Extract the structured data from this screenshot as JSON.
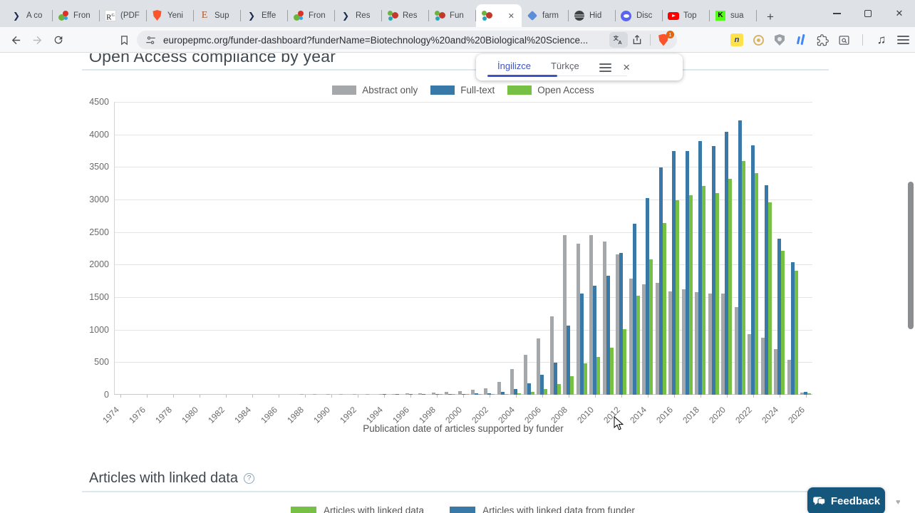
{
  "browser": {
    "tabs": [
      {
        "label": "A co",
        "icon": "chevron-dark-icon"
      },
      {
        "label": "Fron",
        "icon": "frontiers-icon"
      },
      {
        "label": "(PDF",
        "icon": "researchgate-icon"
      },
      {
        "label": "Yeni",
        "icon": "brave-icon"
      },
      {
        "label": "Sup",
        "icon": "e-serif-icon"
      },
      {
        "label": "Effe",
        "icon": "chevron-dark-icon"
      },
      {
        "label": "Fron",
        "icon": "frontiers-icon"
      },
      {
        "label": "Res",
        "icon": "chevron-dark-icon"
      },
      {
        "label": "Res",
        "icon": "europepmc-icon"
      },
      {
        "label": "Fun",
        "icon": "europepmc-icon"
      },
      {
        "label": "",
        "icon": "europepmc-icon",
        "active": true
      },
      {
        "label": "farm",
        "icon": "blue-gem-icon"
      },
      {
        "label": "Hid",
        "icon": "globe-icon"
      },
      {
        "label": "Disc",
        "icon": "discord-icon"
      },
      {
        "label": "Top",
        "icon": "youtube-icon"
      },
      {
        "label": "sua",
        "icon": "kick-icon"
      }
    ],
    "new_tab_label": "+",
    "url": "europepmc.org/funder-dashboard?funderName=Biotechnology%20and%20Biological%20Science...",
    "shield_badge": "1",
    "translate_popup": {
      "source_lang": "İngilizce",
      "target_lang": "Türkçe"
    }
  },
  "page": {
    "title": "Open Access compliance by year",
    "section_heading": "Articles with linked data",
    "info_glyph": "?",
    "feedback_label": "Feedback",
    "bottom_legend": [
      {
        "label": "Articles with linked data",
        "color": "#76c045"
      },
      {
        "label": "Articles with linked data from funder",
        "color": "#3879a8"
      }
    ]
  },
  "chart_data": {
    "type": "bar",
    "title": "Open Access compliance by year",
    "xlabel": "Publication date of articles supported by funder",
    "ylabel": "",
    "ylim": [
      0,
      4500
    ],
    "ytick_step": 500,
    "x_label_every": 2,
    "grid": true,
    "legend_position": "top",
    "categories": [
      1974,
      1975,
      1976,
      1977,
      1978,
      1979,
      1980,
      1981,
      1982,
      1983,
      1984,
      1985,
      1986,
      1987,
      1988,
      1989,
      1990,
      1991,
      1992,
      1993,
      1994,
      1995,
      1996,
      1997,
      1998,
      1999,
      2000,
      2001,
      2002,
      2003,
      2004,
      2005,
      2006,
      2007,
      2008,
      2009,
      2010,
      2011,
      2012,
      2013,
      2014,
      2015,
      2016,
      2017,
      2018,
      2019,
      2020,
      2021,
      2022,
      2023,
      2024,
      2025,
      2026
    ],
    "series": [
      {
        "name": "Abstract only",
        "color": "#a5a8ab",
        "values": [
          0,
          0,
          0,
          0,
          0,
          0,
          0,
          0,
          0,
          0,
          0,
          0,
          0,
          0,
          3,
          4,
          5,
          6,
          8,
          10,
          12,
          15,
          20,
          25,
          32,
          45,
          55,
          75,
          100,
          200,
          390,
          615,
          865,
          1200,
          2450,
          2320,
          2450,
          2350,
          2160,
          1790,
          1700,
          1715,
          1590,
          1625,
          1580,
          1555,
          1560,
          1345,
          930,
          875,
          705,
          540,
          30
        ]
      },
      {
        "name": "Full-text",
        "color": "#3879a8",
        "values": [
          0,
          0,
          0,
          0,
          0,
          0,
          0,
          0,
          0,
          0,
          0,
          0,
          0,
          0,
          0,
          0,
          0,
          0,
          0,
          0,
          2,
          3,
          5,
          6,
          8,
          10,
          12,
          18,
          25,
          45,
          90,
          170,
          305,
          490,
          1065,
          1555,
          1670,
          1825,
          2175,
          2630,
          3025,
          3490,
          3745,
          3750,
          3900,
          3820,
          4035,
          4215,
          3835,
          3220,
          2395,
          2035,
          40
        ]
      },
      {
        "name": "Open Access",
        "color": "#76c045",
        "values": [
          0,
          0,
          0,
          0,
          0,
          0,
          0,
          0,
          0,
          0,
          0,
          0,
          0,
          0,
          0,
          0,
          0,
          0,
          0,
          0,
          0,
          0,
          0,
          0,
          2,
          3,
          5,
          8,
          10,
          15,
          25,
          45,
          90,
          160,
          285,
          485,
          585,
          720,
          1005,
          1525,
          2085,
          2635,
          2990,
          3065,
          3205,
          3100,
          3320,
          3590,
          3400,
          2955,
          2215,
          1905,
          25
        ]
      }
    ]
  }
}
